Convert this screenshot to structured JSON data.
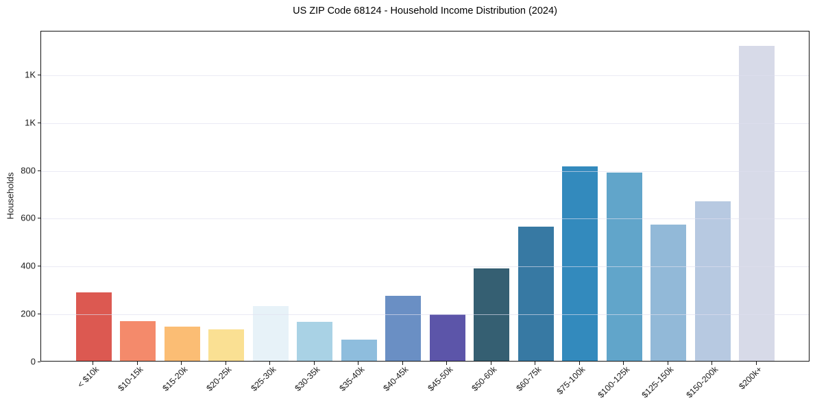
{
  "header": {
    "title": "US ZIP Code 68124 - Household Income Distribution (2024)"
  },
  "chart_data": {
    "type": "bar",
    "title": "US ZIP Code 68124 - Household Income Distribution (2024)",
    "xlabel": "",
    "ylabel": "Households",
    "categories": [
      "< $10k",
      "$10-15k",
      "$15-20k",
      "$20-25k",
      "$25-30k",
      "$30-35k",
      "$35-40k",
      "$40-45k",
      "$45-50k",
      "$50-60k",
      "$60-75k",
      "$75-100k",
      "$100-125k",
      "$125-150k",
      "$150-200k",
      "$200k+"
    ],
    "values": [
      285,
      165,
      143,
      131,
      228,
      162,
      90,
      272,
      195,
      386,
      562,
      812,
      787,
      570,
      668,
      1317
    ],
    "bar_colors": [
      "#dc5951",
      "#f48a6b",
      "#fbbd74",
      "#fae093",
      "#e7f2f8",
      "#a9d2e5",
      "#8ebddd",
      "#6a8fc4",
      "#5c55a9",
      "#355f72",
      "#3779a3",
      "#338abd",
      "#61a5ca",
      "#92b9d8",
      "#b7c9e1",
      "#d7dae8"
    ],
    "ylim": [
      0,
      1383
    ],
    "ytick_values": [
      0,
      200,
      400,
      600,
      800,
      1000,
      1200
    ],
    "ytick_labels": [
      "0",
      "200",
      "400",
      "600",
      "800",
      "1K",
      "1K"
    ],
    "x_tick_rotation_deg": 45,
    "grid": "horizontal",
    "legend": "none"
  },
  "style_colors": {
    "background": "#ffffff",
    "spine": "#111111",
    "grid": "#e9e9f1",
    "text": "#1a1a1a"
  }
}
